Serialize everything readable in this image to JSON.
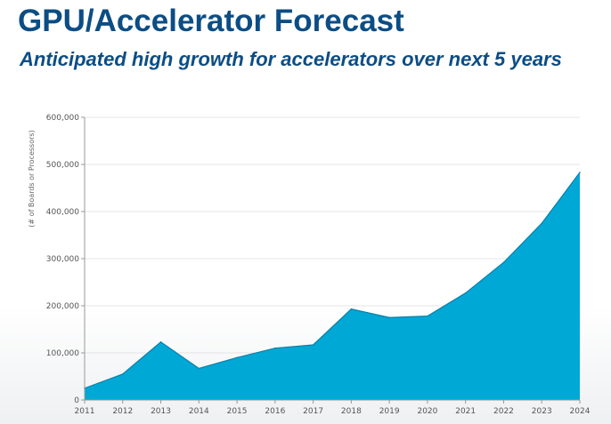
{
  "slide": {
    "title": "GPU/Accelerator Forecast",
    "subtitle": "Anticipated high growth for accelerators over next 5 years"
  },
  "colors": {
    "title": "#0c4d84",
    "area_fill": "#00a8d6",
    "area_stroke": "#0a7fa6",
    "grid": "#e4e4e4"
  },
  "chart_data": {
    "type": "area",
    "x": [
      "2011",
      "2012",
      "2013",
      "2014",
      "2015",
      "2016",
      "2017",
      "2018",
      "2019",
      "2020",
      "2021",
      "2022",
      "2023",
      "2024"
    ],
    "series": [
      {
        "values": [
          25000,
          55000,
          123000,
          67000,
          90000,
          110000,
          117000,
          193000,
          175000,
          178000,
          227000,
          292000,
          375000,
          483000
        ]
      }
    ],
    "ylabel": "(# of Boards or Processors)",
    "ylim": [
      0,
      600000
    ],
    "yticks": [
      "0",
      "100,000",
      "200,000",
      "300,000",
      "400,000",
      "500,000",
      "600,000"
    ],
    "grid": true,
    "legend": "none"
  }
}
